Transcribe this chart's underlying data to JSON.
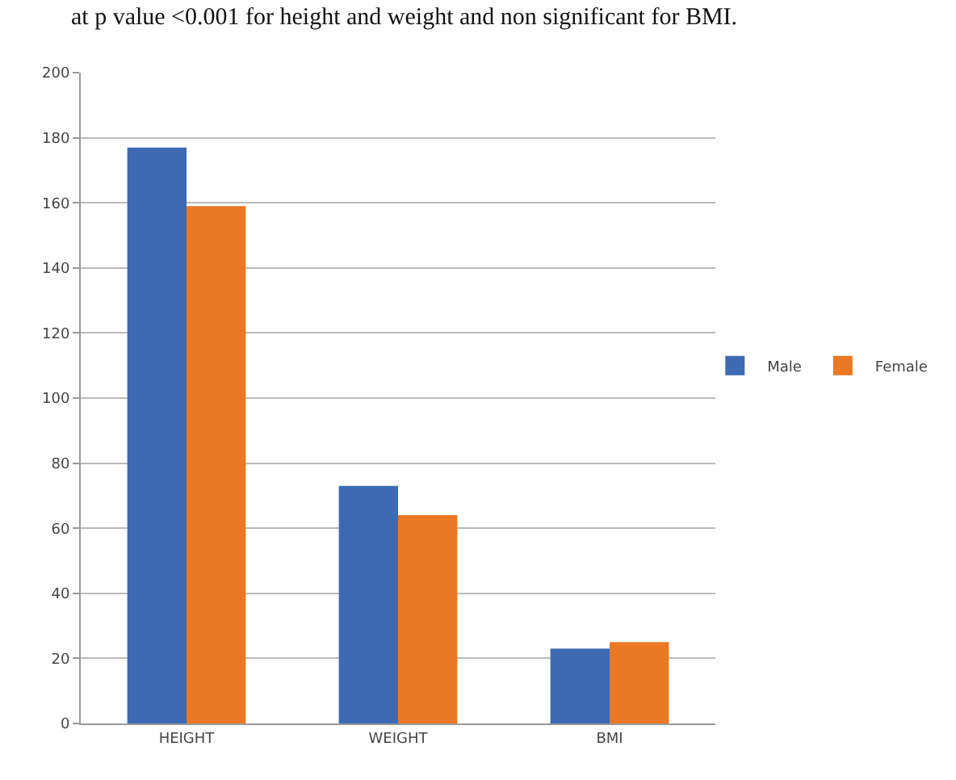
{
  "chart_data": {
    "type": "bar",
    "annotations": [
      "at p value <0.001 for height and weight and non significant for BMI."
    ],
    "categories": [
      "HEIGHT",
      "WEIGHT",
      "BMI"
    ],
    "series": [
      {
        "name": "Male",
        "color": "#3d6ab3",
        "values": [
          177,
          73,
          23
        ]
      },
      {
        "name": "Female",
        "color": "#ea7825",
        "values": [
          159,
          64,
          25
        ]
      }
    ],
    "ylim": [
      0,
      200
    ],
    "yticks": [
      0,
      20,
      40,
      60,
      80,
      100,
      120,
      140,
      160,
      180,
      200
    ],
    "grid": "y",
    "legend": "right"
  }
}
